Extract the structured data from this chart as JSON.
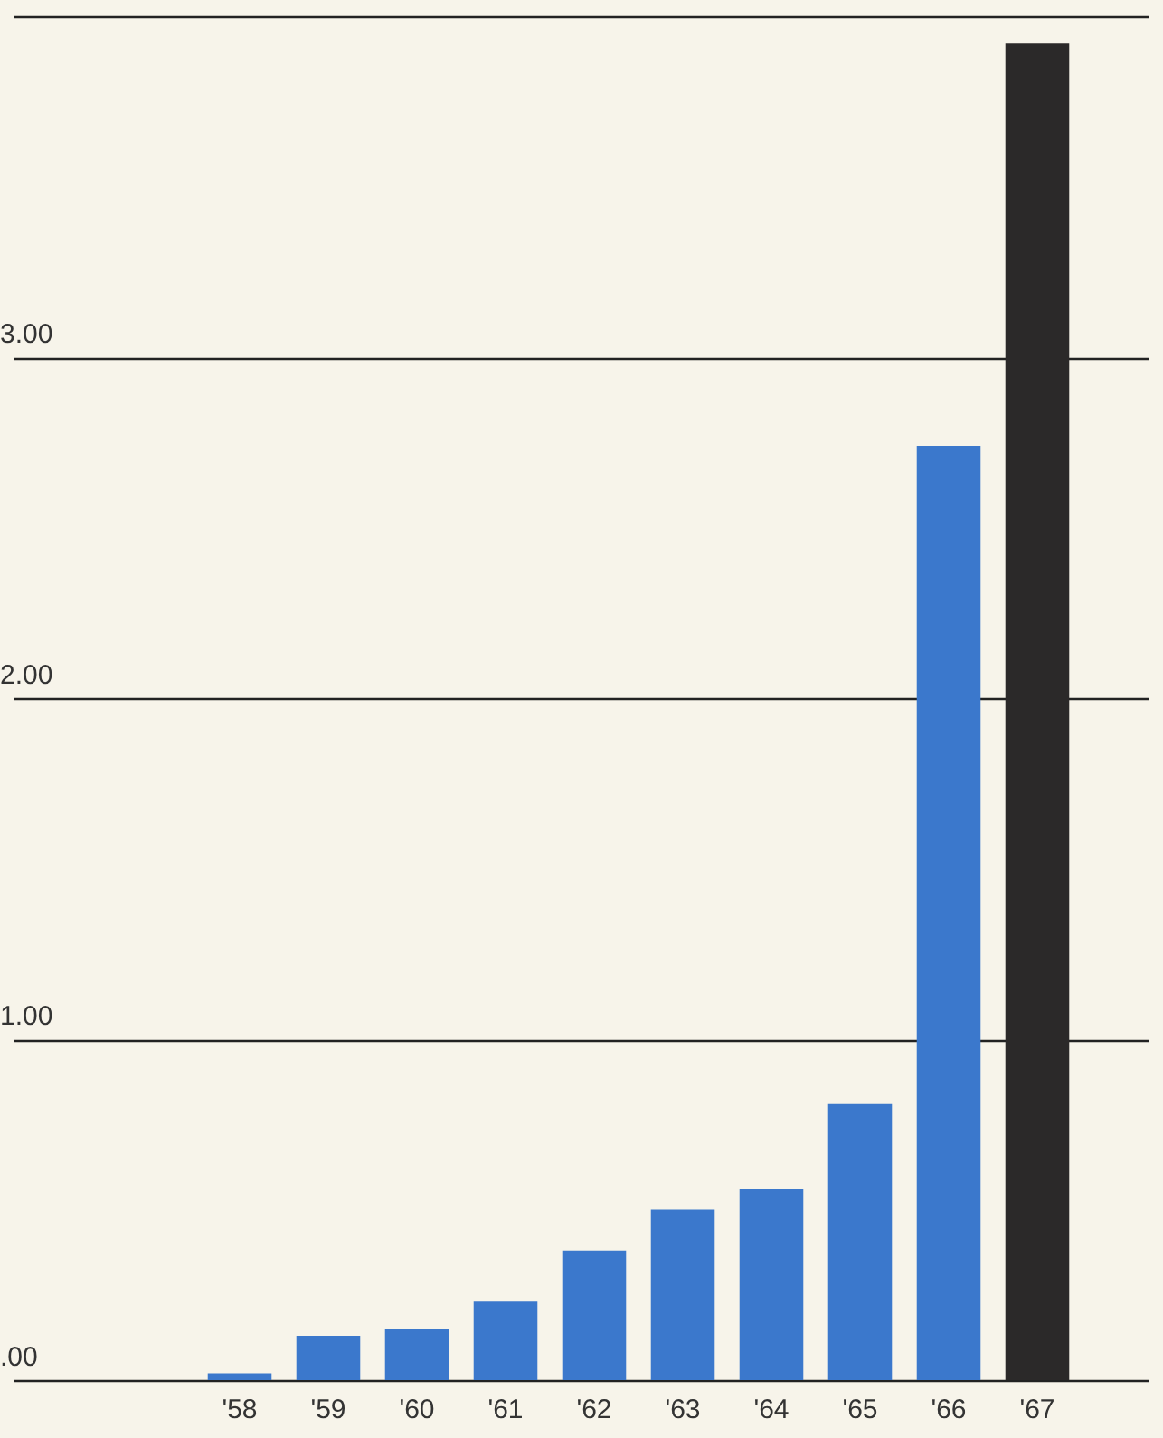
{
  "chart_data": {
    "type": "bar",
    "categories": [
      "'58",
      "'59",
      "'60",
      "'61",
      "'62",
      "'63",
      "'64",
      "'65",
      "'66",
      "'67"
    ],
    "values": [
      0.02,
      0.13,
      0.15,
      0.23,
      0.38,
      0.5,
      0.56,
      0.81,
      2.74,
      3.92
    ],
    "colors": [
      "#3b78cc",
      "#3b78cc",
      "#3b78cc",
      "#3b78cc",
      "#3b78cc",
      "#3b78cc",
      "#3b78cc",
      "#3b78cc",
      "#3b78cc",
      "#2b2929"
    ],
    "ylim": [
      0,
      4
    ],
    "yticks": [
      {
        "value": 0,
        "label": ".00"
      },
      {
        "value": 1,
        "label": "1.00"
      },
      {
        "value": 2,
        "label": "2.00"
      },
      {
        "value": 3,
        "label": "3.00"
      },
      {
        "value": 4,
        "label": null
      }
    ],
    "grid": "y",
    "legend": false
  }
}
